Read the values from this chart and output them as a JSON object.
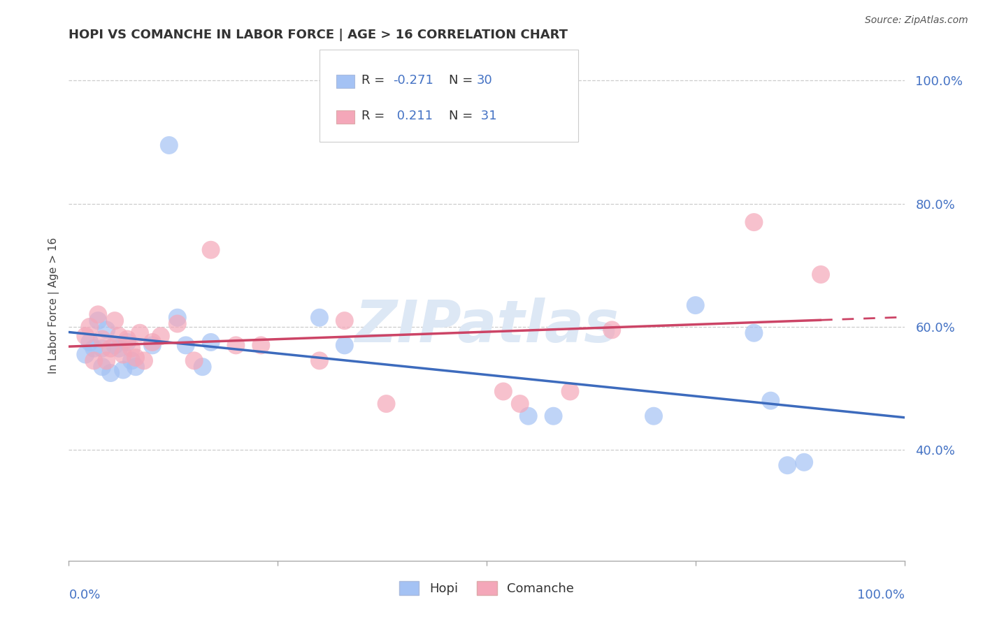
{
  "title": "HOPI VS COMANCHE IN LABOR FORCE | AGE > 16 CORRELATION CHART",
  "source": "Source: ZipAtlas.com",
  "ylabel": "In Labor Force | Age > 16",
  "hopi_color": "#a4c2f4",
  "comanche_color": "#f4a7b9",
  "hopi_line_color": "#3d6bbd",
  "comanche_line_color": "#cc4466",
  "axis_label_color": "#4472c4",
  "title_color": "#333333",
  "hopi_x": [
    0.02,
    0.025,
    0.03,
    0.035,
    0.04,
    0.04,
    0.045,
    0.05,
    0.055,
    0.06,
    0.065,
    0.07,
    0.075,
    0.08,
    0.1,
    0.12,
    0.13,
    0.14,
    0.16,
    0.17,
    0.3,
    0.33,
    0.55,
    0.58,
    0.7,
    0.75,
    0.82,
    0.84,
    0.86,
    0.88
  ],
  "hopi_y": [
    0.555,
    0.575,
    0.565,
    0.61,
    0.565,
    0.535,
    0.595,
    0.525,
    0.57,
    0.565,
    0.53,
    0.575,
    0.545,
    0.535,
    0.57,
    0.895,
    0.615,
    0.57,
    0.535,
    0.575,
    0.615,
    0.57,
    0.455,
    0.455,
    0.455,
    0.635,
    0.59,
    0.48,
    0.375,
    0.38
  ],
  "comanche_x": [
    0.02,
    0.025,
    0.03,
    0.035,
    0.04,
    0.045,
    0.05,
    0.055,
    0.06,
    0.065,
    0.07,
    0.075,
    0.08,
    0.085,
    0.09,
    0.1,
    0.11,
    0.13,
    0.15,
    0.17,
    0.2,
    0.23,
    0.3,
    0.33,
    0.38,
    0.52,
    0.54,
    0.6,
    0.65,
    0.82,
    0.9
  ],
  "comanche_y": [
    0.585,
    0.6,
    0.545,
    0.62,
    0.58,
    0.545,
    0.565,
    0.61,
    0.585,
    0.555,
    0.58,
    0.565,
    0.55,
    0.59,
    0.545,
    0.575,
    0.585,
    0.605,
    0.545,
    0.725,
    0.57,
    0.57,
    0.545,
    0.61,
    0.475,
    0.495,
    0.475,
    0.495,
    0.595,
    0.77,
    0.685
  ],
  "xlim": [
    0.0,
    1.0
  ],
  "ylim": [
    0.22,
    1.05
  ],
  "yticks": [
    0.4,
    0.6,
    0.8,
    1.0
  ],
  "ytick_labels": [
    "40.0%",
    "60.0%",
    "80.0%",
    "100.0%"
  ],
  "grid_color": "#cccccc",
  "background_color": "#ffffff",
  "watermark": "ZIPatlas",
  "watermark_color": "#dde8f5"
}
